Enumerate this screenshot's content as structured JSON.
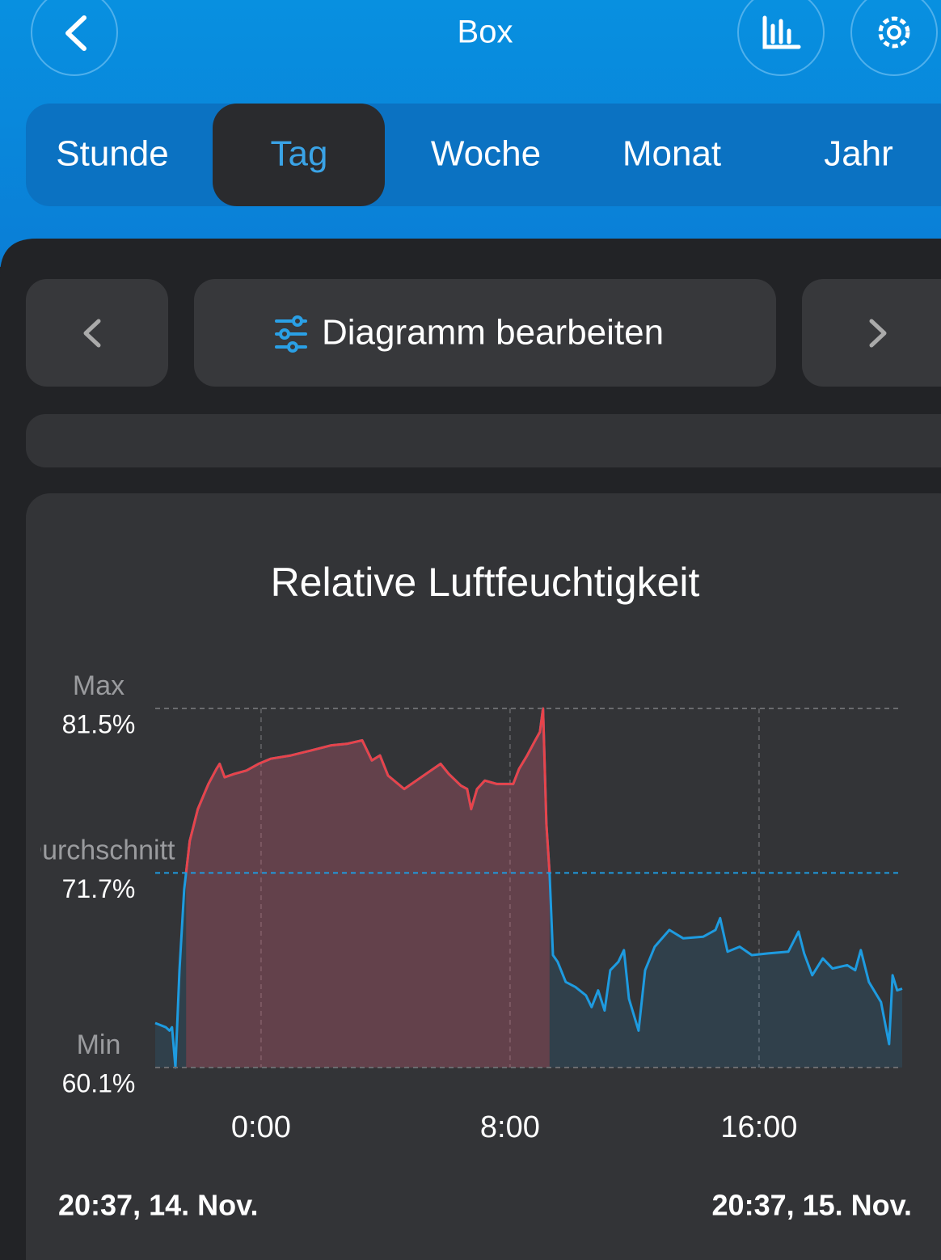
{
  "header": {
    "title": "Box"
  },
  "tabs": {
    "items": [
      "Stunde",
      "Tag",
      "Woche",
      "Monat",
      "Jahr"
    ],
    "selected": 1
  },
  "edit_button": {
    "label": "Diagramm bearbeiten"
  },
  "chart_data": {
    "type": "line",
    "title": "Relative Luftfeuchtigkeit",
    "start_label": "20:37,  14. Nov.",
    "end_label": "20:37,  15. Nov.",
    "xlim": [
      -3.4,
      20.6
    ],
    "xticks": [
      {
        "value": 0,
        "label": "0:00"
      },
      {
        "value": 8,
        "label": "8:00"
      },
      {
        "value": 16,
        "label": "16:00"
      }
    ],
    "ylim": [
      60.1,
      81.5
    ],
    "reference_lines": [
      {
        "name": "Max",
        "value": 81.5,
        "value_label": "81.5%",
        "color": "#6a6b6e"
      },
      {
        "name": "Durchschnitt",
        "value": 71.7,
        "value_label": "71.7%",
        "color": "#1e9be0"
      },
      {
        "name": "Min",
        "value": 60.1,
        "value_label": "60.1%",
        "color": "#6a6b6e"
      }
    ],
    "grid": true,
    "series": [
      {
        "color": "#1e9be0",
        "above_average_color": "#e8434a",
        "x": [
          -3.4,
          -3.06,
          -2.94,
          -2.86,
          -2.75,
          -2.62,
          -2.47,
          -2.29,
          -2.03,
          -1.69,
          -1.43,
          -1.33,
          -1.17,
          -0.86,
          -0.47,
          -0.08,
          0.31,
          0.96,
          1.61,
          2.26,
          2.78,
          3.25,
          3.56,
          3.82,
          4.08,
          4.6,
          4.99,
          5.38,
          5.77,
          6.03,
          6.42,
          6.62,
          6.75,
          6.94,
          7.19,
          7.58,
          8.1,
          8.29,
          8.55,
          8.81,
          8.96,
          9.06,
          9.17,
          9.27,
          9.38,
          9.53,
          9.79,
          10.1,
          10.44,
          10.62,
          10.83,
          11.04,
          11.22,
          11.48,
          11.66,
          11.82,
          12.13,
          12.34,
          12.65,
          13.12,
          13.56,
          14.21,
          14.6,
          14.75,
          14.99,
          15.38,
          15.77,
          16.29,
          16.94,
          17.27,
          17.45,
          17.71,
          18.05,
          18.36,
          18.83,
          19.09,
          19.27,
          19.53,
          19.92,
          20.18,
          20.29,
          20.44,
          20.6
        ],
        "values": [
          62.75,
          62.5,
          62.3,
          62.5,
          60.1,
          65.9,
          70.7,
          73.6,
          75.5,
          77.0,
          77.9,
          78.2,
          77.4,
          77.6,
          77.8,
          78.2,
          78.5,
          78.7,
          79.0,
          79.3,
          79.4,
          79.6,
          78.4,
          78.7,
          77.5,
          76.7,
          77.2,
          77.7,
          78.2,
          77.6,
          76.9,
          76.7,
          75.5,
          76.7,
          77.2,
          77.0,
          77.0,
          77.9,
          78.7,
          79.6,
          80.1,
          81.5,
          74.6,
          71.7,
          66.8,
          66.4,
          65.2,
          64.9,
          64.4,
          63.7,
          64.7,
          63.5,
          65.9,
          66.4,
          67.1,
          64.2,
          62.3,
          65.9,
          67.3,
          68.3,
          67.8,
          67.9,
          68.3,
          69.0,
          67.0,
          67.3,
          66.8,
          66.9,
          67.0,
          68.2,
          66.9,
          65.6,
          66.6,
          66.0,
          66.2,
          65.9,
          67.1,
          65.2,
          64.0,
          61.5,
          65.6,
          64.7,
          64.8
        ]
      }
    ]
  }
}
